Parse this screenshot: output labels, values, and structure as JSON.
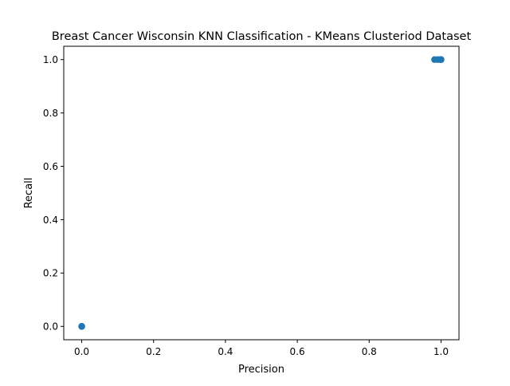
{
  "chart_data": {
    "type": "scatter",
    "title": "Breast Cancer Wisconsin KNN Classification - KMeans Clusteriod Dataset",
    "xlabel": "Precision",
    "ylabel": "Recall",
    "xlim": [
      -0.05,
      1.05
    ],
    "ylim": [
      -0.05,
      1.05
    ],
    "x_ticks": [
      0.0,
      0.2,
      0.4,
      0.6,
      0.8,
      1.0
    ],
    "x_tick_labels": [
      "0.0",
      "0.2",
      "0.4",
      "0.6",
      "0.8",
      "1.0"
    ],
    "y_ticks": [
      0.0,
      0.2,
      0.4,
      0.6,
      0.8,
      1.0
    ],
    "y_tick_labels": [
      "0.0",
      "0.2",
      "0.4",
      "0.6",
      "0.8",
      "1.0"
    ],
    "grid": false,
    "legend": "none",
    "marker_color": "#1f77b4",
    "series": [
      {
        "x": [
          0.0,
          0.0,
          0.0,
          0.0,
          0.982,
          0.991,
          1.0,
          1.0,
          0.998
        ],
        "y": [
          0.0,
          0.0,
          0.0,
          0.0,
          1.0,
          1.0,
          1.0,
          1.0,
          1.0
        ]
      }
    ]
  }
}
